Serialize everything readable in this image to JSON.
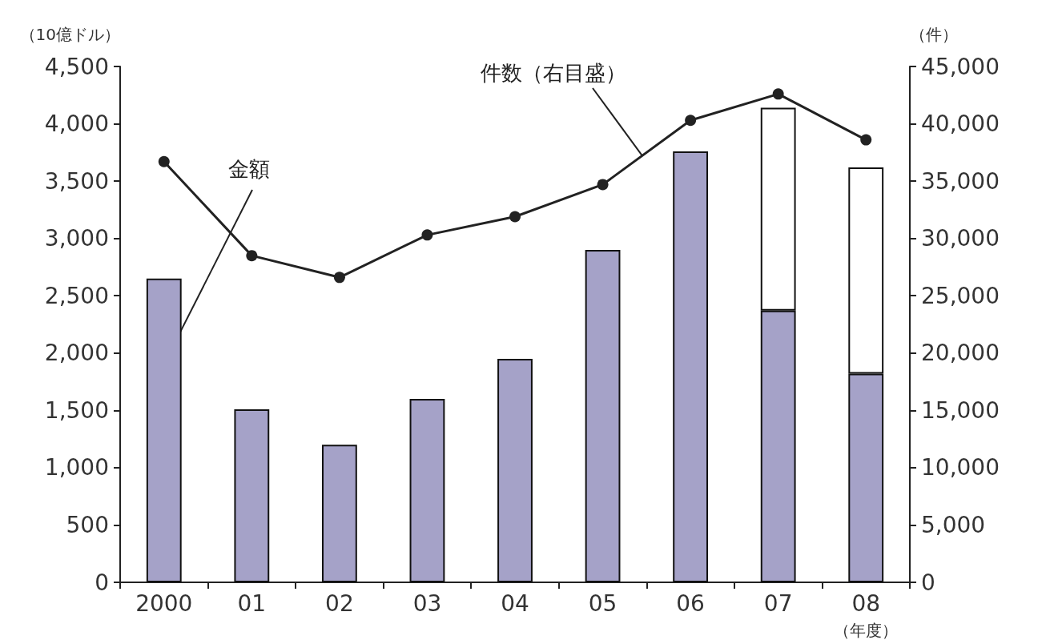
{
  "chart_data": {
    "type": "bar",
    "stacked": true,
    "xlabel": "（年度）",
    "ylabel": "（10億ドル）",
    "y2label": "（件）",
    "categories": [
      "2000",
      "01",
      "02",
      "03",
      "04",
      "05",
      "06",
      "07",
      "08"
    ],
    "series": [
      {
        "name": "金額",
        "color": "#a5a2c8",
        "values": [
          2650,
          1510,
          1200,
          1600,
          1950,
          2900,
          3760,
          2370,
          1820
        ]
      },
      {
        "color": "#ffffff",
        "values": [
          null,
          null,
          null,
          null,
          null,
          null,
          null,
          1770,
          1800
        ]
      },
      {
        "name": "件数（右目盛）",
        "type": "line",
        "axis": "y2",
        "color": "#222222",
        "marker": "circle",
        "values": [
          36700,
          28500,
          26600,
          30300,
          31900,
          34700,
          40300,
          42600,
          38600
        ]
      }
    ],
    "ylim": [
      0,
      4500
    ],
    "yticks": [
      0,
      500,
      {
        "value": 1000,
        "label": "1,000"
      },
      {
        "value": 1500,
        "label": "1,500"
      },
      {
        "value": 2000,
        "label": "2,000"
      },
      {
        "value": 2500,
        "label": "2,500"
      },
      {
        "value": 3000,
        "label": "3,000"
      },
      {
        "value": 3500,
        "label": "3,500"
      },
      {
        "value": 4000,
        "label": "4,000"
      },
      {
        "value": 4500,
        "label": "4,500"
      }
    ],
    "y2lim": [
      0,
      45000
    ],
    "y2ticks": [
      0,
      {
        "value": 5000,
        "label": "5,000"
      },
      {
        "value": 10000,
        "label": "10,000"
      },
      {
        "value": 15000,
        "label": "15,000"
      },
      {
        "value": 20000,
        "label": "20,000"
      },
      {
        "value": 25000,
        "label": "25,000"
      },
      {
        "value": 30000,
        "label": "30,000"
      },
      {
        "value": 35000,
        "label": "35,000"
      },
      {
        "value": 40000,
        "label": "40,000"
      },
      {
        "value": 45000,
        "label": "45,000"
      }
    ],
    "grid": false,
    "legend": false
  }
}
